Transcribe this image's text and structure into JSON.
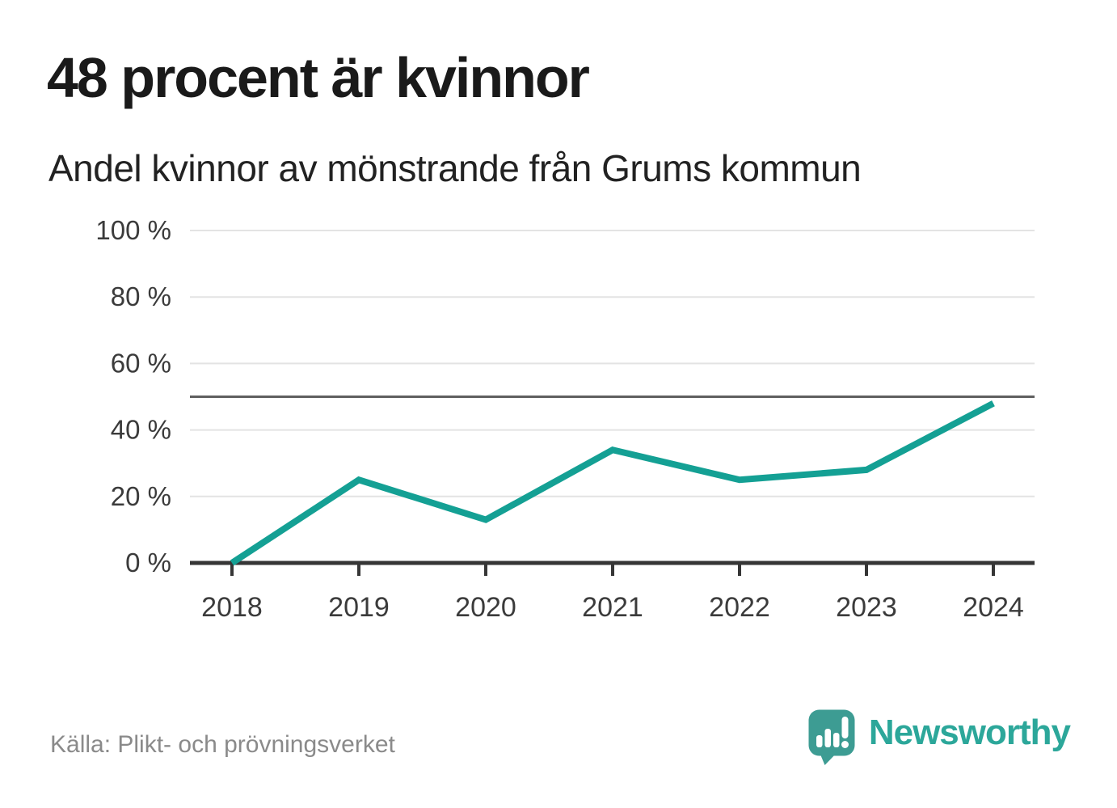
{
  "page": {
    "title": "48 procent är kvinnor",
    "subtitle": "Andel kvinnor av mönstrande från Grums kommun",
    "source": "Källa: Plikt- och prövningsverket",
    "brand": {
      "name": "Newsworthy"
    }
  },
  "chart_data": {
    "type": "line",
    "title": "48 procent är kvinnor",
    "subtitle": "Andel kvinnor av mönstrande från Grums kommun",
    "categories": [
      "2018",
      "2019",
      "2020",
      "2021",
      "2022",
      "2023",
      "2024"
    ],
    "values": [
      0,
      25,
      13,
      34,
      25,
      28,
      48
    ],
    "unit": "%",
    "xlabel": "",
    "ylabel": "",
    "ylim": [
      0,
      100
    ],
    "y_ticks": [
      0,
      20,
      40,
      60,
      80,
      100
    ],
    "y_tick_suffix": " %",
    "reference_line": 50,
    "grid": true,
    "legend": "none",
    "line_color": "#14A094"
  },
  "colors": {
    "accent_line": "#14A094",
    "brand_bubble": "#3D9C93",
    "brand_text": "#2CA79A",
    "grid": "#E3E3E3",
    "reference": "#5F5F5F",
    "axis": "#363636",
    "axis_label": "#3B3B3B",
    "title": "#1A1A1A",
    "source": "#8A8A8A"
  }
}
